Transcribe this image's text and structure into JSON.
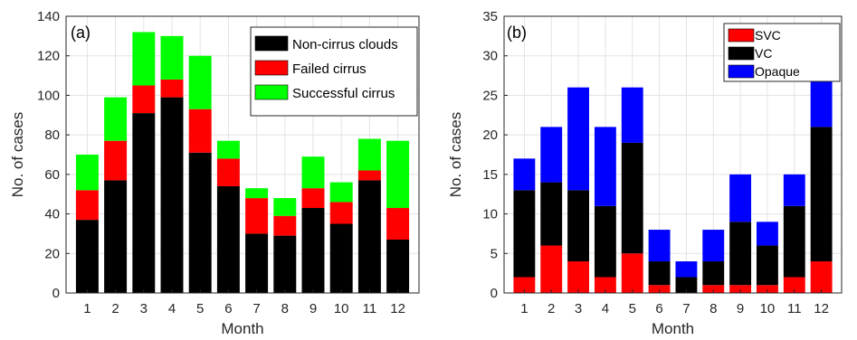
{
  "chart_data": [
    {
      "type": "bar",
      "stacked": true,
      "panel_label": "(a)",
      "xlabel": "Month",
      "ylabel": "No. of cases",
      "categories": [
        "1",
        "2",
        "3",
        "4",
        "5",
        "6",
        "7",
        "8",
        "9",
        "10",
        "11",
        "12"
      ],
      "ylim": [
        0,
        140
      ],
      "yticks": [
        "0",
        "20",
        "40",
        "60",
        "80",
        "100",
        "120",
        "140"
      ],
      "grid": true,
      "legend_position": "top-right",
      "series": [
        {
          "name": "Non-cirrus clouds",
          "color": "#000000",
          "values": [
            37,
            57,
            91,
            99,
            71,
            54,
            30,
            29,
            43,
            35,
            57,
            27
          ]
        },
        {
          "name": "Failed cirrus",
          "color": "#ff0000",
          "values": [
            15,
            20,
            14,
            9,
            22,
            14,
            18,
            10,
            10,
            11,
            5,
            16
          ]
        },
        {
          "name": "Successful cirrus",
          "color": "#00ff00",
          "values": [
            18,
            22,
            27,
            22,
            27,
            9,
            5,
            9,
            16,
            10,
            16,
            34
          ]
        }
      ]
    },
    {
      "type": "bar",
      "stacked": true,
      "panel_label": "(b)",
      "xlabel": "Month",
      "ylabel": "No. of cases",
      "categories": [
        "1",
        "2",
        "3",
        "4",
        "5",
        "6",
        "7",
        "8",
        "9",
        "10",
        "11",
        "12"
      ],
      "ylim": [
        0,
        35
      ],
      "yticks": [
        "0",
        "5",
        "10",
        "15",
        "20",
        "25",
        "30",
        "35"
      ],
      "grid": true,
      "legend_position": "top-right",
      "series": [
        {
          "name": "SVC",
          "color": "#ff0000",
          "values": [
            2,
            6,
            4,
            2,
            5,
            1,
            0,
            1,
            1,
            1,
            2,
            4
          ]
        },
        {
          "name": "VC",
          "color": "#000000",
          "values": [
            11,
            8,
            9,
            9,
            14,
            3,
            2,
            3,
            8,
            5,
            9,
            17
          ]
        },
        {
          "name": "Opaque",
          "color": "#0000ff",
          "values": [
            4,
            7,
            13,
            10,
            7,
            4,
            2,
            4,
            6,
            3,
            4,
            12
          ]
        }
      ]
    }
  ]
}
